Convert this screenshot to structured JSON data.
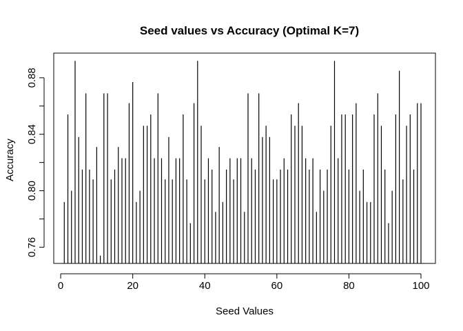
{
  "chart_data": {
    "type": "bar",
    "title": "Seed values vs Accuracy (Optimal K=7)",
    "xlabel": "Seed Values",
    "ylabel": "Accuracy",
    "xlim": [
      1,
      100
    ],
    "ylim": [
      0.7485,
      0.8975
    ],
    "x_ticks": [
      0,
      20,
      40,
      60,
      80,
      100
    ],
    "y_ticks": [
      0.76,
      0.8,
      0.84,
      0.88
    ],
    "x_tick_labels": [
      "0",
      "20",
      "40",
      "60",
      "80",
      "100"
    ],
    "y_tick_labels": [
      "0.76",
      "0.80",
      "0.84",
      "0.88"
    ],
    "grid": false,
    "color": "#000000",
    "series": [
      {
        "x": [
          1,
          2,
          3,
          4,
          5,
          6,
          7,
          8,
          9,
          10,
          11,
          12,
          13,
          14,
          15,
          16,
          17,
          18,
          19,
          20,
          21,
          22,
          23,
          24,
          25,
          26,
          27,
          28,
          29,
          30,
          31,
          32,
          33,
          34,
          35,
          36,
          37,
          38,
          39,
          40,
          41,
          42,
          43,
          44,
          45,
          46,
          47,
          48,
          49,
          50,
          51,
          52,
          53,
          54,
          55,
          56,
          57,
          58,
          59,
          60,
          61,
          62,
          63,
          64,
          65,
          66,
          67,
          68,
          69,
          70,
          71,
          72,
          73,
          74,
          75,
          76,
          77,
          78,
          79,
          80,
          81,
          82,
          83,
          84,
          85,
          86,
          87,
          88,
          89,
          90,
          91,
          92,
          93,
          94,
          95,
          96,
          97,
          98,
          99,
          100
        ],
        "values": [
          0.792,
          0.854,
          0.8,
          0.892,
          0.838,
          0.815,
          0.869,
          0.815,
          0.808,
          0.831,
          0.754,
          0.869,
          0.869,
          0.808,
          0.815,
          0.831,
          0.823,
          0.823,
          0.862,
          0.877,
          0.792,
          0.8,
          0.846,
          0.846,
          0.854,
          0.823,
          0.869,
          0.823,
          0.808,
          0.838,
          0.808,
          0.823,
          0.823,
          0.854,
          0.808,
          0.777,
          0.862,
          0.892,
          0.846,
          0.808,
          0.823,
          0.815,
          0.785,
          0.831,
          0.792,
          0.815,
          0.823,
          0.808,
          0.823,
          0.823,
          0.785,
          0.869,
          0.823,
          0.815,
          0.869,
          0.838,
          0.846,
          0.838,
          0.808,
          0.808,
          0.815,
          0.823,
          0.815,
          0.854,
          0.846,
          0.862,
          0.846,
          0.823,
          0.815,
          0.823,
          0.785,
          0.815,
          0.8,
          0.815,
          0.846,
          0.892,
          0.823,
          0.854,
          0.854,
          0.815,
          0.854,
          0.862,
          0.8,
          0.815,
          0.792,
          0.792,
          0.854,
          0.869,
          0.846,
          0.815,
          0.777,
          0.8,
          0.854,
          0.885,
          0.808,
          0.846,
          0.854,
          0.815,
          0.862,
          0.862
        ]
      }
    ]
  }
}
